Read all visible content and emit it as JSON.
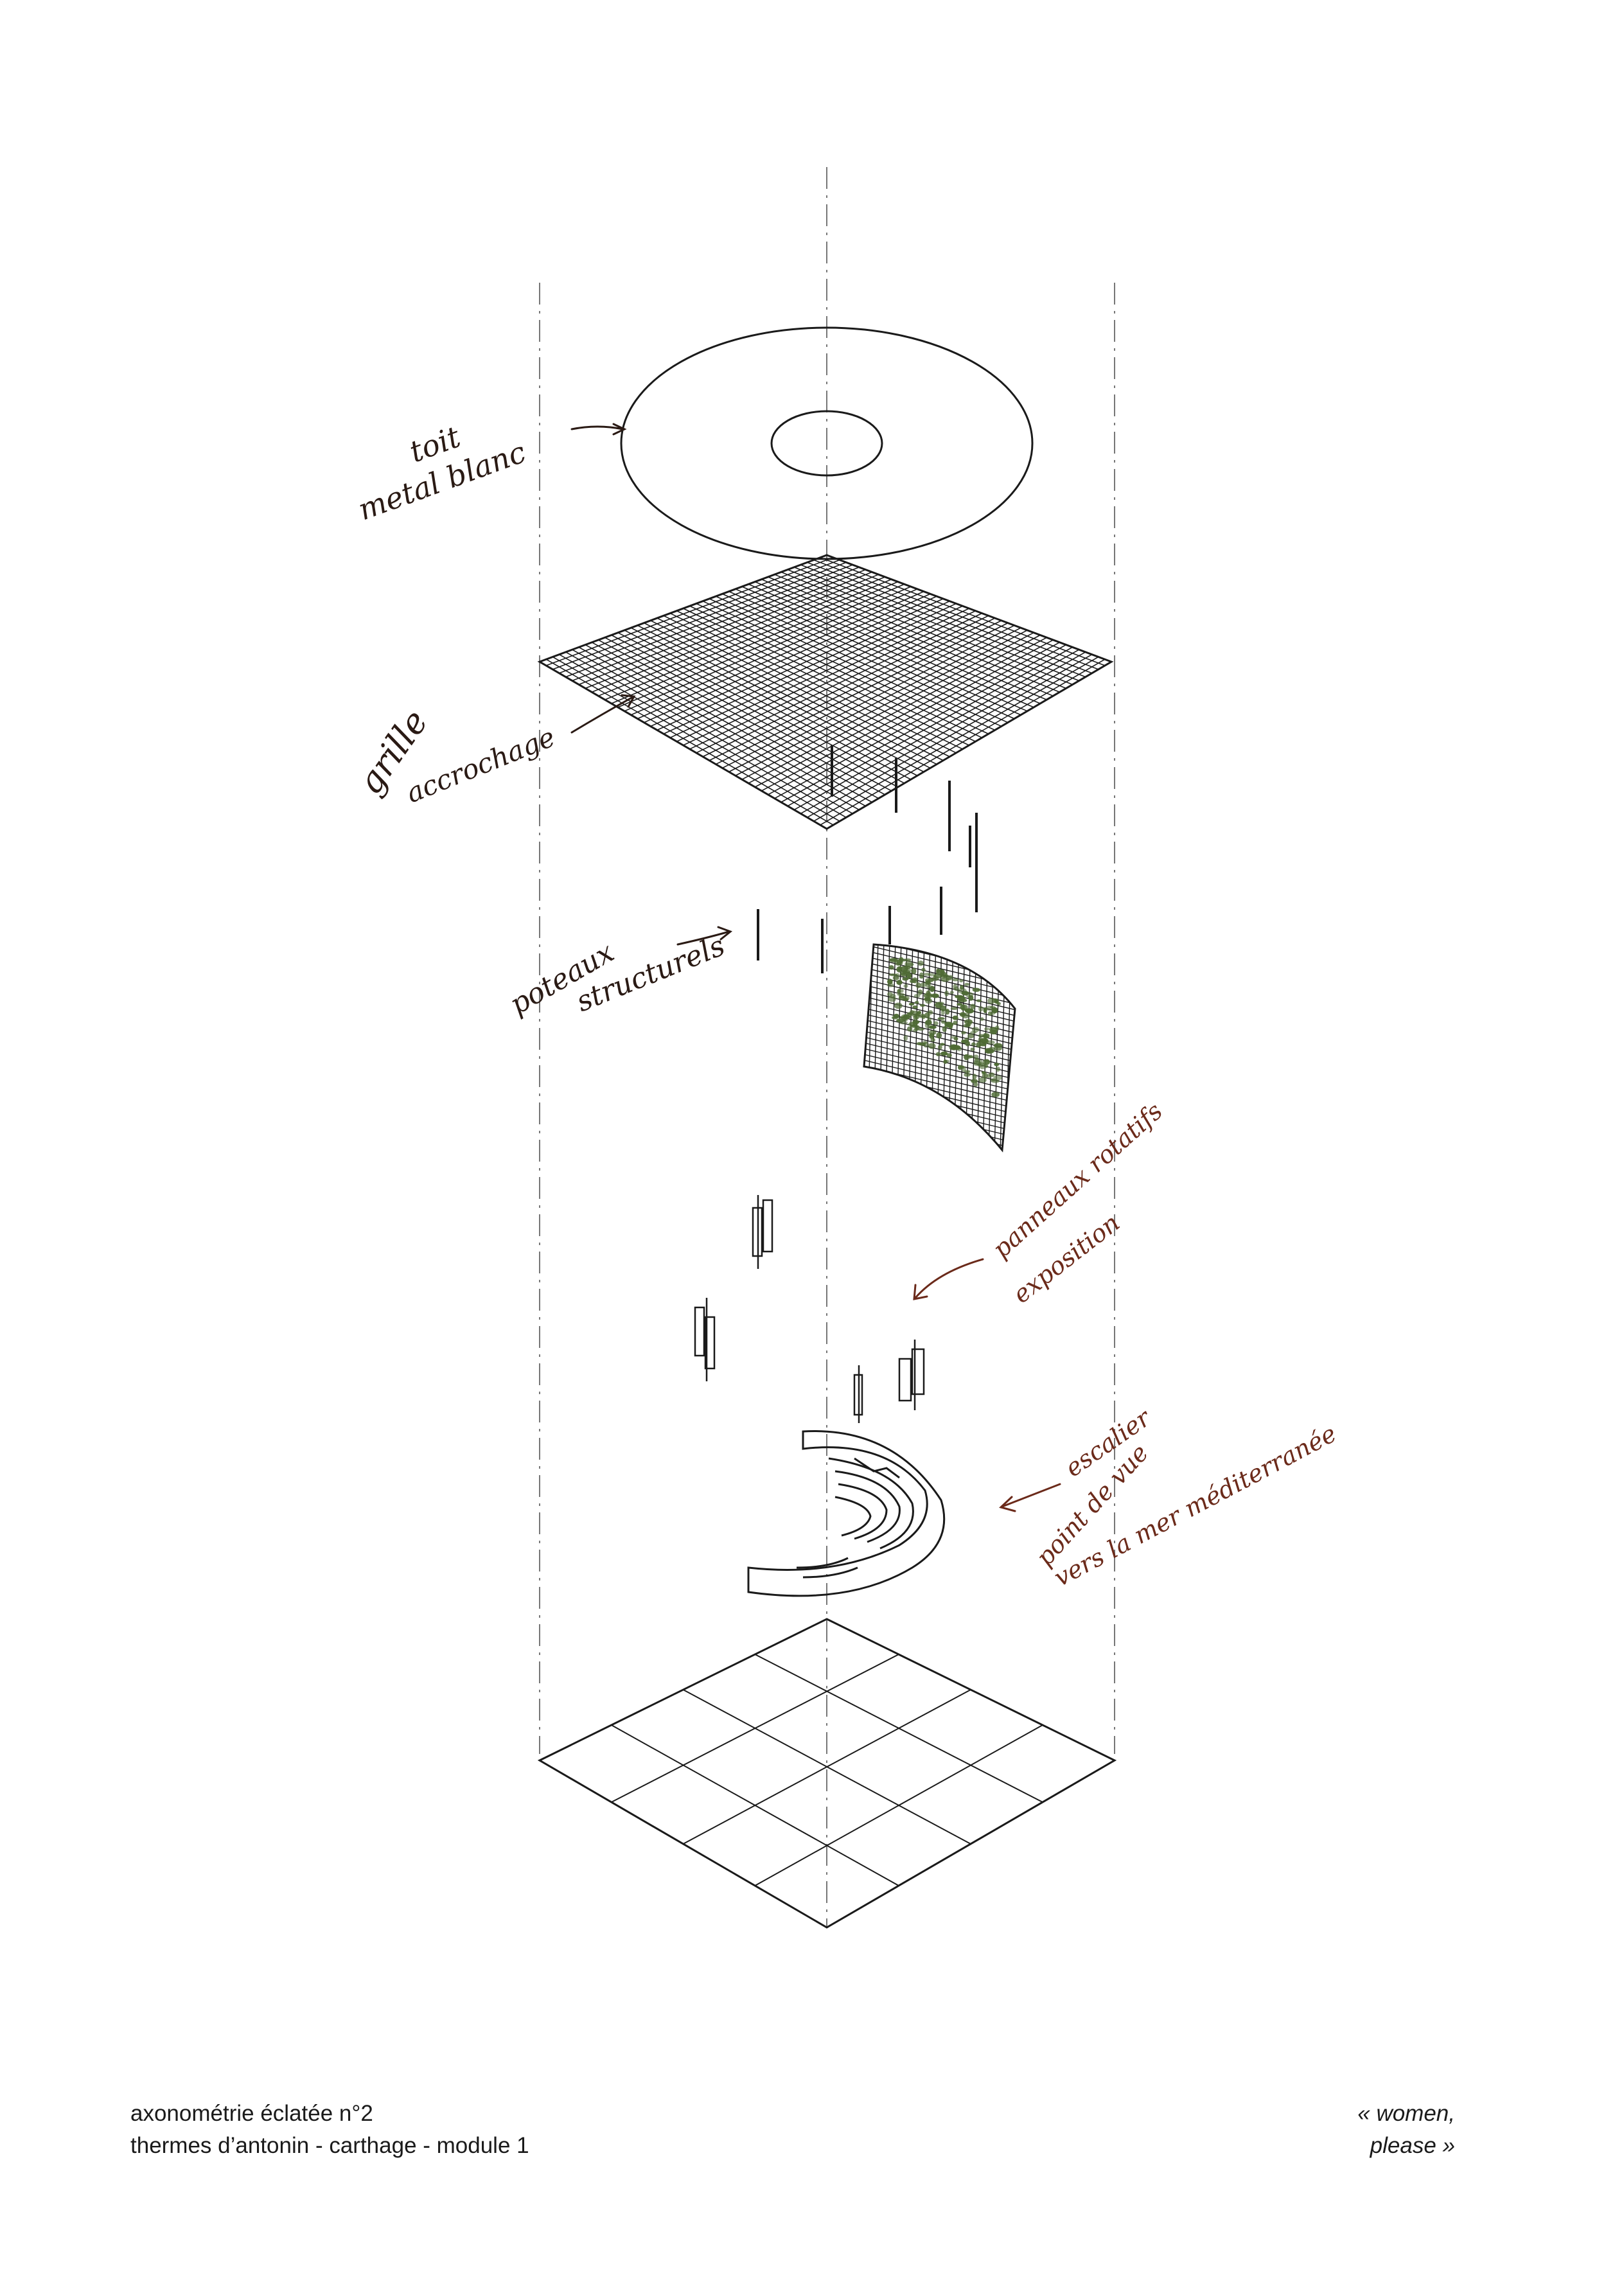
{
  "drawing": {
    "annotations": {
      "roof": [
        "toit",
        "metal blanc"
      ],
      "grid": [
        "grille",
        "accrochage"
      ],
      "posts": [
        "poteaux",
        "structurels"
      ],
      "panels": [
        "panneaux rotatifs",
        "exposition"
      ],
      "stair": [
        "escalier",
        "point de vue",
        "vers la mer méditerranée"
      ]
    },
    "colors": {
      "line": "#1a1a1a",
      "axis": "#777777",
      "ink_dark": "#2a1a14",
      "ink_brown": "#6b2a1a",
      "plant": "#4f6b35"
    }
  },
  "caption": {
    "left": [
      "axonométrie éclatée n°2",
      "thermes d’antonin - carthage - module 1"
    ],
    "right": [
      "« women,",
      "please »"
    ]
  }
}
